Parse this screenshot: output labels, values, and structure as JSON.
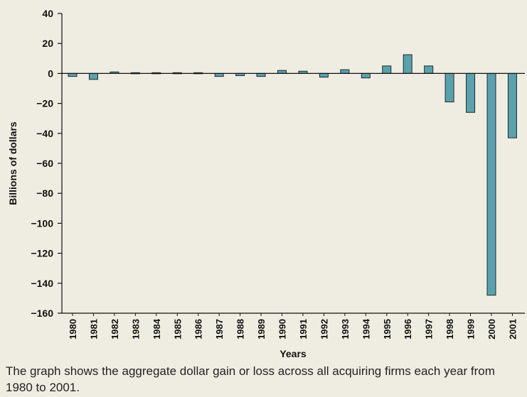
{
  "chart_data": {
    "type": "bar",
    "categories": [
      "1980",
      "1981",
      "1982",
      "1983",
      "1984",
      "1985",
      "1986",
      "1987",
      "1988",
      "1989",
      "1990",
      "1991",
      "1992",
      "1993",
      "1994",
      "1995",
      "1996",
      "1997",
      "1998",
      "1999",
      "2000",
      "2001"
    ],
    "values": [
      -2,
      -4,
      1,
      0.5,
      0.5,
      0.5,
      0.5,
      -2,
      -1.5,
      -2,
      2,
      1.5,
      -2.5,
      2.5,
      -3,
      5,
      12.5,
      5,
      -19,
      -26,
      -148,
      -43
    ],
    "xlabel": "Years",
    "ylabel": "Billions of dollars",
    "ylim": [
      -160,
      40
    ],
    "yticks": [
      "40",
      "20",
      "0",
      "−20",
      "−40",
      "−60",
      "−80",
      "−100",
      "−120",
      "−140",
      "−160"
    ],
    "yticks_values": [
      40,
      20,
      0,
      -20,
      -40,
      -60,
      -80,
      -100,
      -120,
      -140,
      -160
    ],
    "grid": false,
    "colors": {
      "bar_fill": "#5ba1ad",
      "bar_stroke": "#1e2a2c",
      "background": "#efede2",
      "axis": "#111111"
    }
  },
  "caption": "The graph shows the aggregate dollar gain or loss across all acquiring firms each year from 1980 to 2001."
}
